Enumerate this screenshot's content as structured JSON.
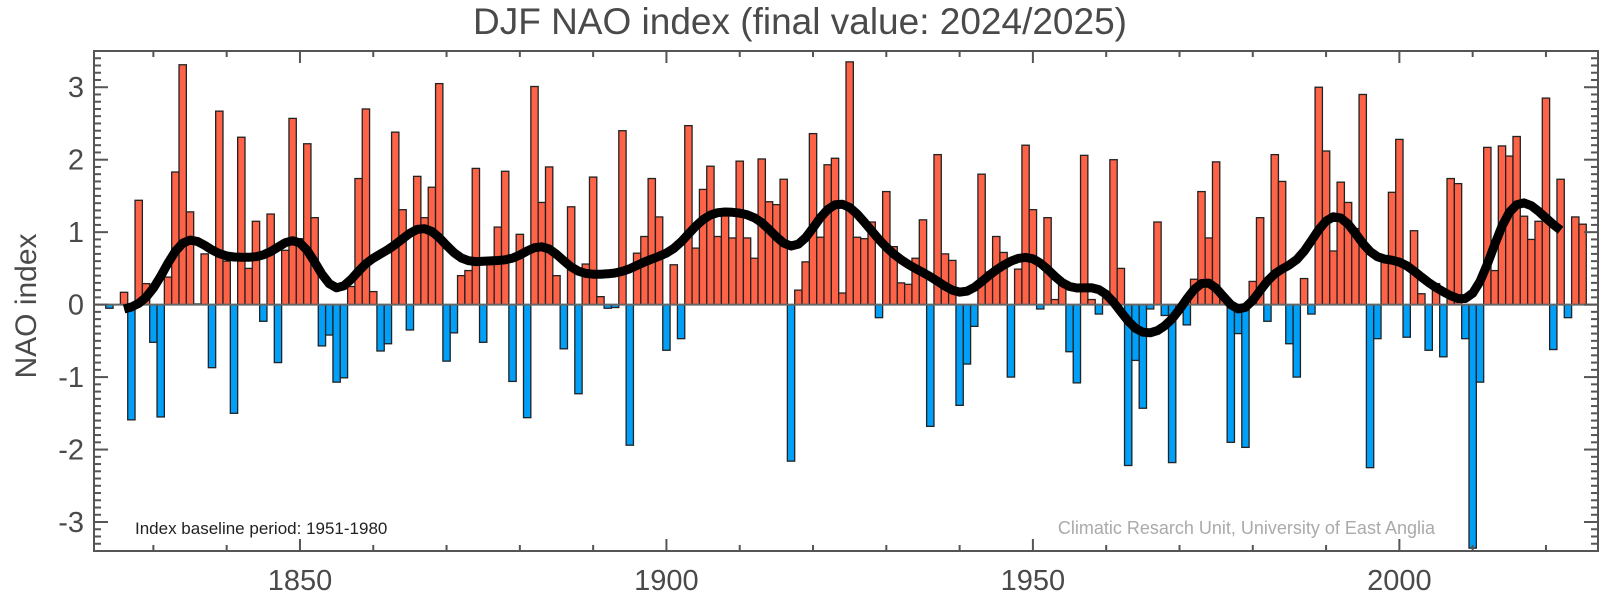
{
  "chart_data": {
    "type": "bar",
    "title": "DJF NAO index (final value: 2024/2025)",
    "xlabel": "",
    "ylabel": "NAO index",
    "xlim": [
      1821.9,
      2027.1
    ],
    "ylim": [
      -3.4,
      3.5
    ],
    "x_ticks": [
      1850,
      1900,
      1950,
      2000
    ],
    "y_ticks": [
      -3,
      -2,
      -1,
      0,
      1,
      2,
      3
    ],
    "grid": false,
    "annotations": {
      "baseline": "Index baseline period: 1951-1980",
      "credit": "Climatic Resarch Unit, University of East Anglia"
    },
    "colors": {
      "positive": "#ff6347",
      "negative": "#00a0f8",
      "smoothed": "#000000",
      "text": "#4a4a4a"
    },
    "smoothed_line": true,
    "start_year": 1824,
    "values": [
      -0.05,
      0,
      0.17,
      -1.59,
      1.44,
      0.29,
      -0.52,
      -1.55,
      0.38,
      1.83,
      3.31,
      1.28,
      0.01,
      0.7,
      -0.87,
      2.67,
      0.6,
      -1.5,
      2.31,
      0.5,
      1.15,
      -0.23,
      1.25,
      -0.8,
      0.75,
      2.57,
      0.91,
      2.22,
      1.2,
      -0.57,
      -0.42,
      -1.07,
      -1.01,
      0.25,
      1.74,
      2.7,
      0.18,
      -0.64,
      -0.54,
      2.38,
      1.31,
      -0.35,
      1.77,
      1.2,
      1.62,
      3.05,
      -0.78,
      -0.39,
      0.4,
      0.47,
      1.88,
      -0.52,
      0.6,
      1.07,
      1.84,
      -1.06,
      0.97,
      -1.56,
      3.01,
      1.41,
      1.9,
      0.4,
      -0.61,
      1.35,
      -1.23,
      0.56,
      1.76,
      0.11,
      -0.05,
      -0.04,
      2.4,
      -1.94,
      0.71,
      0.94,
      1.74,
      1.21,
      -0.63,
      0.55,
      -0.47,
      2.47,
      0.78,
      1.59,
      1.91,
      0.94,
      1.23,
      0.92,
      1.98,
      0.92,
      0.64,
      2.01,
      1.42,
      1.38,
      1.73,
      -2.16,
      0.2,
      0.59,
      2.36,
      0.93,
      1.93,
      2.02,
      0.16,
      3.35,
      0.93,
      0.91,
      1.14,
      -0.18,
      1.56,
      0.8,
      0.3,
      0.28,
      0.64,
      1.17,
      -1.68,
      2.07,
      0.7,
      0.61,
      -1.39,
      -0.82,
      -0.3,
      1.8,
      0.45,
      0.94,
      0.72,
      -1.0,
      0.49,
      2.2,
      1.31,
      -0.06,
      1.2,
      0.07,
      0.28,
      -0.65,
      -1.08,
      2.06,
      0.07,
      -0.13,
      0.09,
      2.0,
      0.5,
      -2.22,
      -0.77,
      -1.43,
      -0.06,
      1.14,
      -0.15,
      -2.18,
      -0.1,
      -0.28,
      0.35,
      1.56,
      0.92,
      1.97,
      0.1,
      -1.9,
      -0.4,
      -1.97,
      0.32,
      1.2,
      -0.23,
      2.07,
      1.7,
      -0.54,
      -1.0,
      0.36,
      -0.13,
      3.0,
      2.12,
      0.74,
      1.69,
      1.41,
      1.05,
      2.9,
      -2.25,
      -0.47,
      0.64,
      1.55,
      2.28,
      -0.45,
      1.02,
      0.15,
      -0.63,
      0.29,
      -0.72,
      1.74,
      1.67,
      -0.47,
      -3.36,
      -1.07,
      2.17,
      0.47,
      2.19,
      2.05,
      2.32,
      1.22,
      0.9,
      1.15,
      2.85,
      -0.62,
      1.73,
      -0.18,
      1.21,
      1.11
    ]
  }
}
